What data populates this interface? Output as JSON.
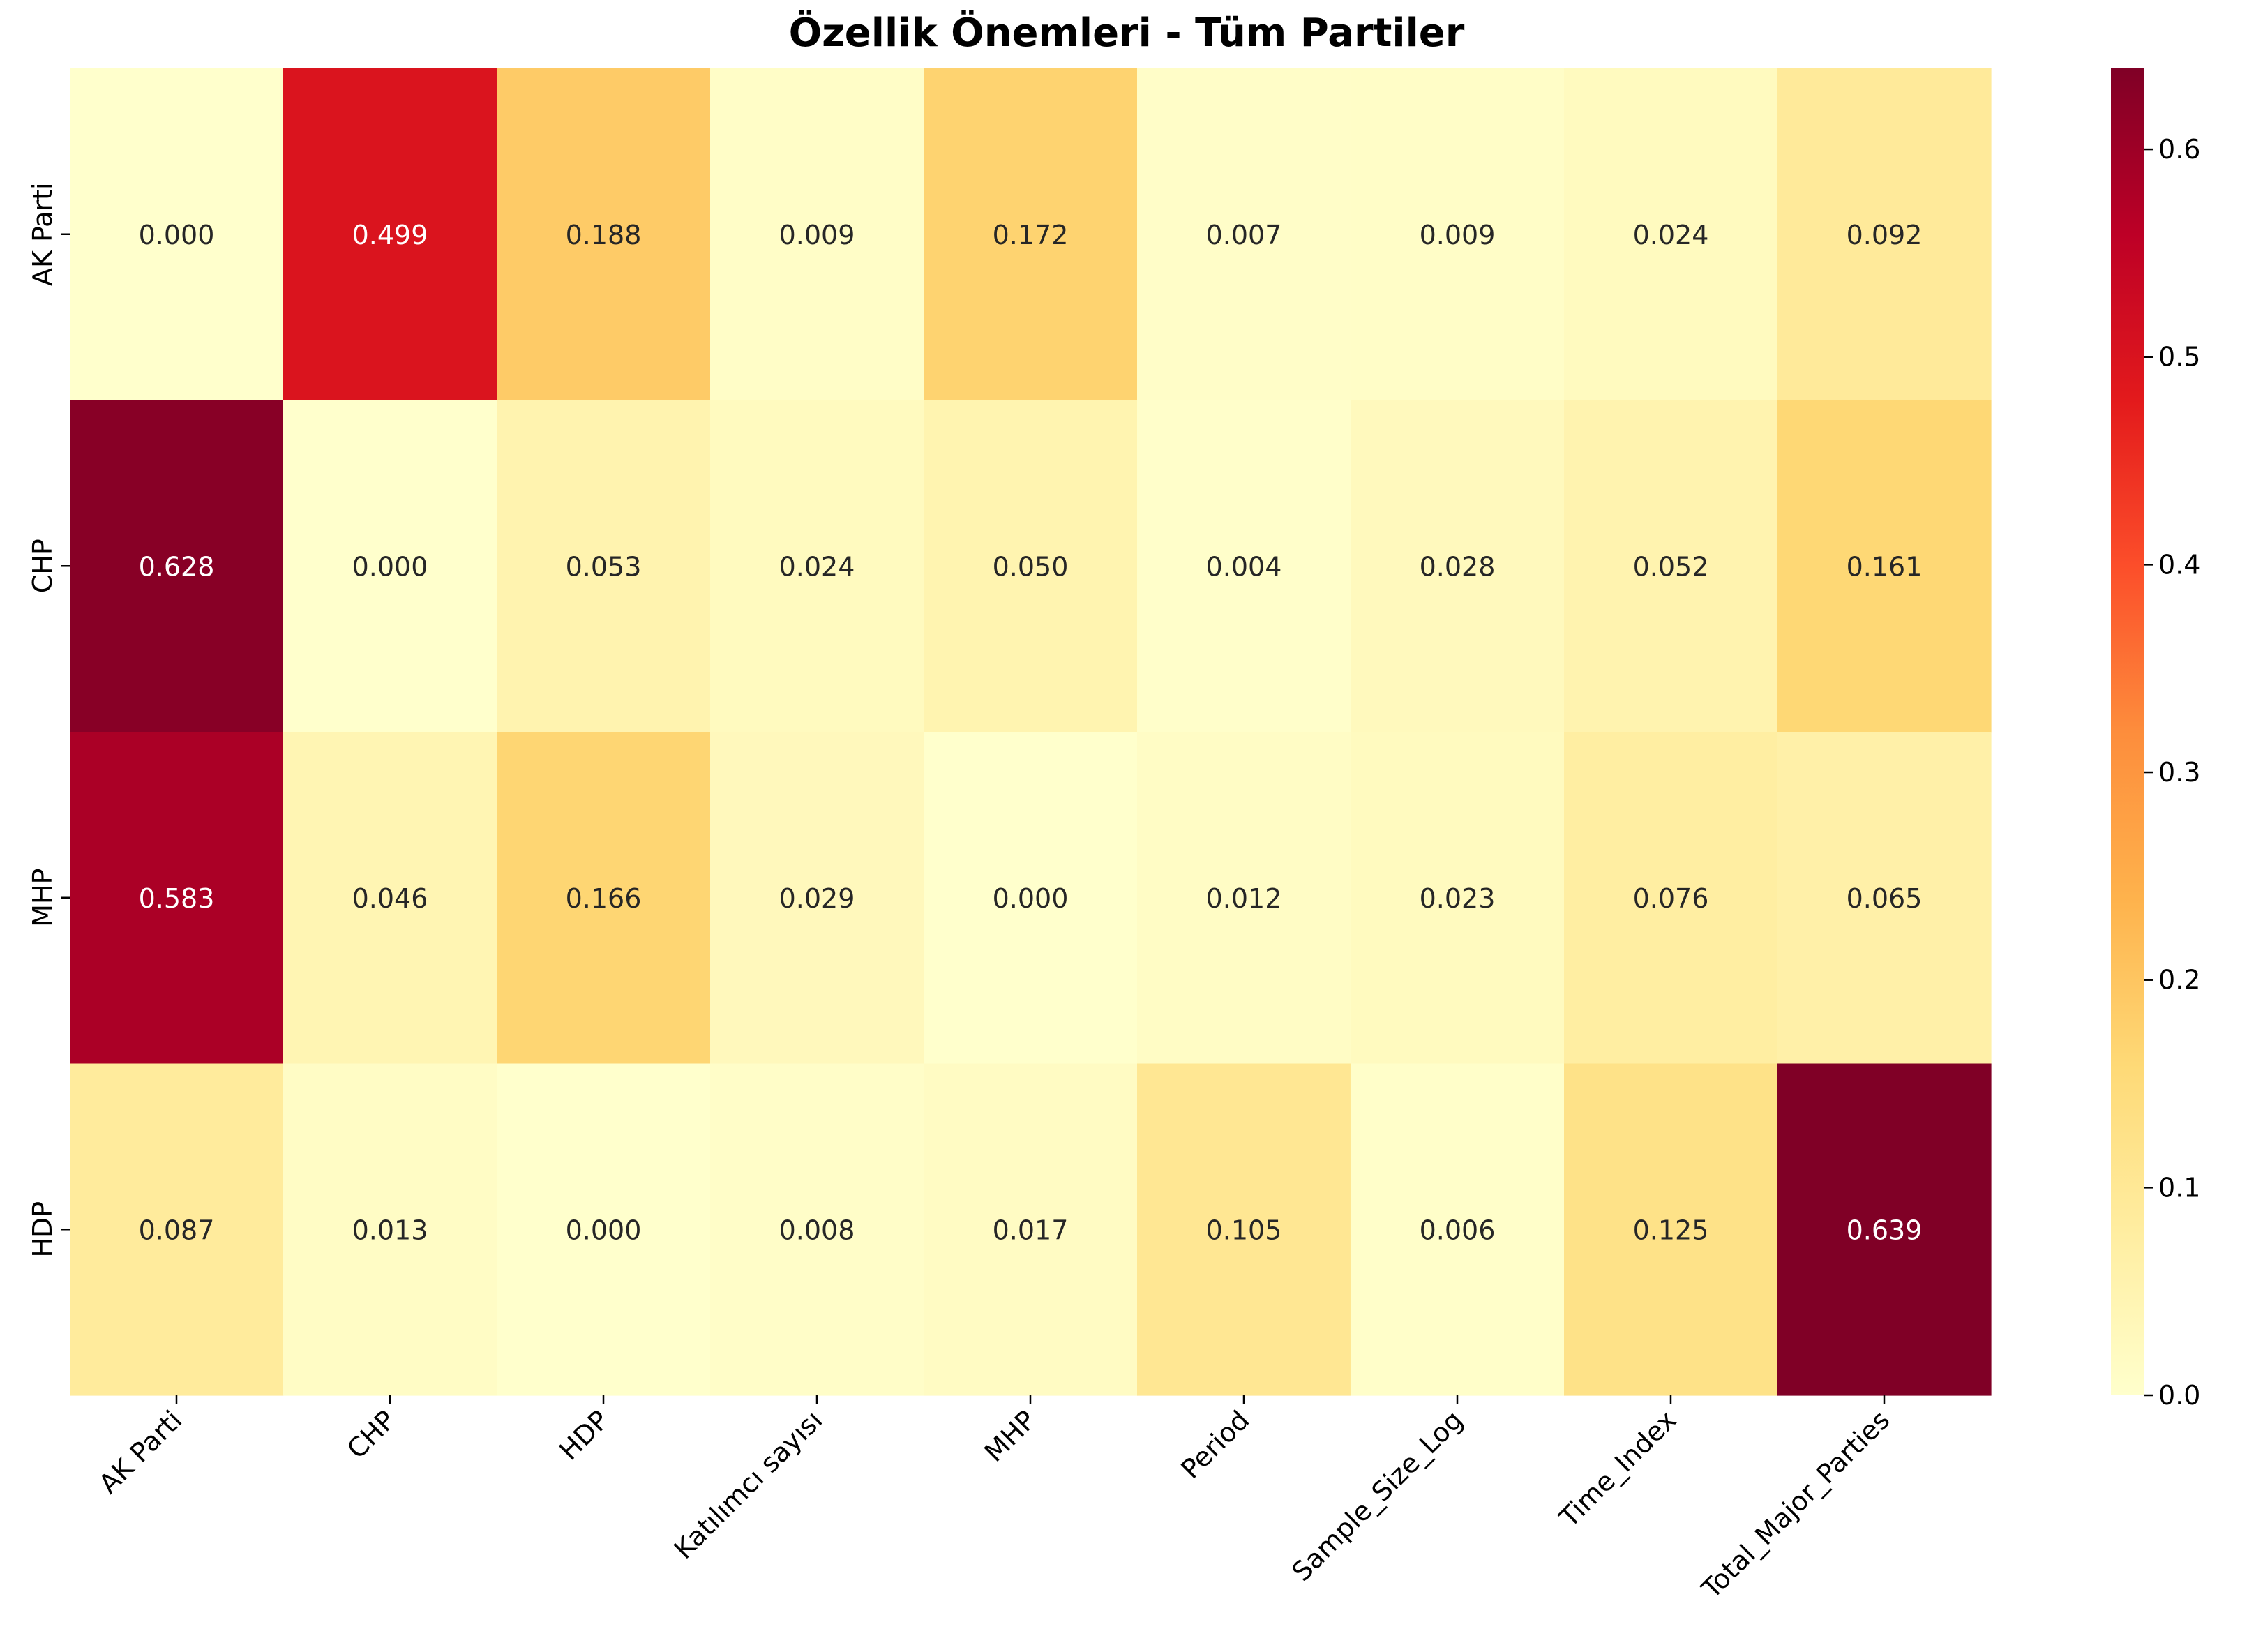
{
  "chart_data": {
    "type": "heatmap",
    "title": "Özellik Önemleri - Tüm Partiler",
    "xlabel": "",
    "ylabel": "",
    "rows": [
      "AK Parti",
      "CHP",
      "MHP",
      "HDP"
    ],
    "columns": [
      "AK Parti",
      "CHP",
      "HDP",
      "Katılımcı sayısı",
      "MHP",
      "Period",
      "Sample_Size_Log",
      "Time_Index",
      "Total_Major_Parties"
    ],
    "values": [
      [
        0.0,
        0.499,
        0.188,
        0.009,
        0.172,
        0.007,
        0.009,
        0.024,
        0.092
      ],
      [
        0.628,
        0.0,
        0.053,
        0.024,
        0.05,
        0.004,
        0.028,
        0.052,
        0.161
      ],
      [
        0.583,
        0.046,
        0.166,
        0.029,
        0.0,
        0.012,
        0.023,
        0.076,
        0.065
      ],
      [
        0.087,
        0.013,
        0.0,
        0.008,
        0.017,
        0.105,
        0.006,
        0.125,
        0.639
      ]
    ],
    "value_format": "0.000",
    "colormap": "YlOrRd",
    "vmin": 0.0,
    "vmax": 0.639,
    "colorbar_ticks": [
      0.0,
      0.1,
      0.2,
      0.3,
      0.4,
      0.5,
      0.6
    ],
    "colorbar_tick_labels": [
      "0.0",
      "0.1",
      "0.2",
      "0.3",
      "0.4",
      "0.5",
      "0.6"
    ],
    "grid": false
  }
}
